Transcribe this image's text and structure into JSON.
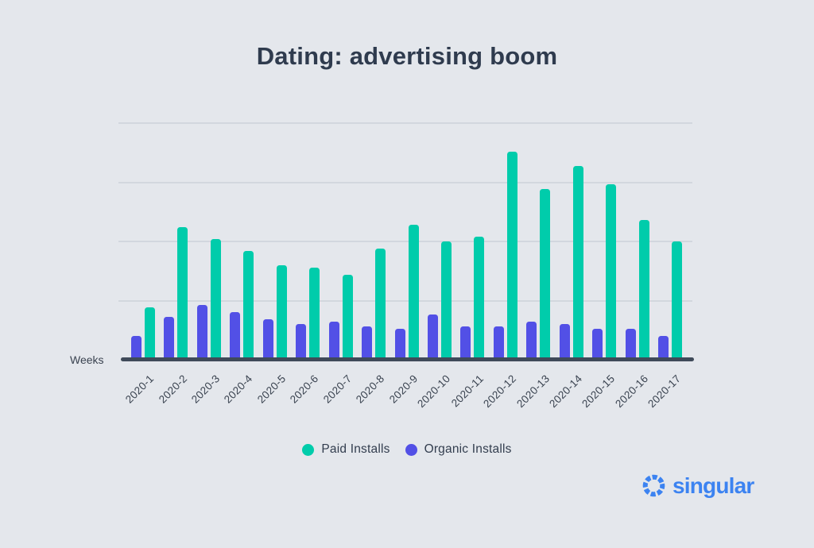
{
  "title": "Dating: advertising boom",
  "axis_label": "Weeks",
  "legend": [
    {
      "label": "Paid Installs",
      "color": "#00ccab"
    },
    {
      "label": "Organic Installs",
      "color": "#5250e6"
    }
  ],
  "logo": {
    "text": "singular",
    "color": "#3c83f1"
  },
  "colors": {
    "background": "#e4e7ec",
    "paid_bar": "#00ccab",
    "organic_bar": "#5250e6",
    "axis_line": "#3f4a59",
    "gridline": "#d2d7de",
    "text_dark": "#2f3b4e"
  },
  "chart_data": {
    "type": "bar",
    "title": "Dating: advertising boom",
    "xlabel": "Weeks",
    "ylabel": "",
    "categories": [
      "2020-1",
      "2020-2",
      "2020-3",
      "2020-4",
      "2020-5",
      "2020-6",
      "2020-7",
      "2020-8",
      "2020-9",
      "2020-10",
      "2020-11",
      "2020-12",
      "2020-13",
      "2020-14",
      "2020-15",
      "2020-16",
      "2020-17"
    ],
    "series": [
      {
        "name": "Paid Installs",
        "color": "#00ccab",
        "values": [
          22,
          56,
          51,
          46,
          40,
          39,
          36,
          47,
          57,
          50,
          52,
          88,
          72,
          82,
          74,
          59,
          50
        ]
      },
      {
        "name": "Organic Installs",
        "color": "#5250e6",
        "values": [
          10,
          18,
          23,
          20,
          17,
          15,
          16,
          14,
          13,
          19,
          14,
          14,
          16,
          15,
          13,
          13,
          10
        ]
      }
    ],
    "ylim": [
      0,
      100
    ],
    "gridlines": [
      25,
      50,
      75,
      100
    ],
    "layout": {
      "y_axis_labels": "none (values are relative units estimated from gridlines)",
      "grid": "horizontal",
      "legend_position": "bottom-center",
      "x_tick_rotation": -45
    }
  }
}
